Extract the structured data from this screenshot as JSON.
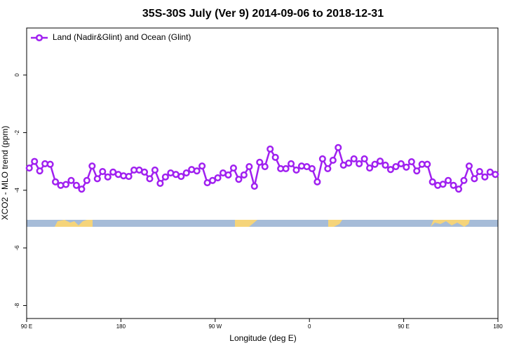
{
  "chart_data": {
    "type": "line",
    "title": "35S-30S July (Ver 9)   2014-09-06 to 2018-12-31",
    "x_label": "Longitude (deg E)",
    "y_label": "XCO2 - MLO trend (ppm)",
    "xlim": [
      90,
      540
    ],
    "ylim": [
      -8.45,
      1.63
    ],
    "xticks": [
      {
        "value": 90,
        "label": "90 E"
      },
      {
        "value": 180,
        "label": "180"
      },
      {
        "value": 270,
        "label": "90 W"
      },
      {
        "value": 360,
        "label": "0"
      },
      {
        "value": 450,
        "label": "90 E"
      },
      {
        "value": 540,
        "label": "180"
      }
    ],
    "yticks": [
      0,
      -2,
      -4,
      -6,
      -8
    ],
    "legend": "top-left",
    "x": [
      92.5,
      97.5,
      102.5,
      107.5,
      112.5,
      117.5,
      122.5,
      127.5,
      132.5,
      137.5,
      142.5,
      147.5,
      152.5,
      157.5,
      162.5,
      167.5,
      172.5,
      177.5,
      182.5,
      187.5,
      192.5,
      197.5,
      202.5,
      207.5,
      212.5,
      217.5,
      222.5,
      227.5,
      232.5,
      237.5,
      242.5,
      247.5,
      252.5,
      257.5,
      262.5,
      267.5,
      272.5,
      277.5,
      282.5,
      287.5,
      292.5,
      297.5,
      302.5,
      307.5,
      312.5,
      317.5,
      322.5,
      327.5,
      332.5,
      337.5,
      342.5,
      347.5,
      352.5,
      357.5,
      362.5,
      367.5,
      372.5,
      377.5,
      382.5,
      387.5,
      392.5,
      397.5,
      402.5,
      407.5,
      412.5,
      417.5,
      422.5,
      427.5,
      432.5,
      437.5,
      442.5,
      447.5,
      452.5,
      457.5,
      462.5,
      467.5,
      472.5,
      477.5,
      482.5,
      487.5,
      492.5,
      497.5,
      502.5,
      507.5,
      512.5,
      517.5,
      522.5,
      527.5,
      532.5,
      537.5
    ],
    "series": [
      {
        "name": "Land (Nadir&Glint) and Ocean (Glint)",
        "color": "#a020f0",
        "values": [
          -3.23,
          -3.0,
          -3.33,
          -3.08,
          -3.1,
          -3.71,
          -3.83,
          -3.8,
          -3.66,
          -3.83,
          -3.96,
          -3.66,
          -3.16,
          -3.6,
          -3.35,
          -3.54,
          -3.37,
          -3.45,
          -3.5,
          -3.52,
          -3.3,
          -3.3,
          -3.37,
          -3.6,
          -3.3,
          -3.76,
          -3.54,
          -3.4,
          -3.45,
          -3.52,
          -3.4,
          -3.28,
          -3.33,
          -3.16,
          -3.74,
          -3.66,
          -3.57,
          -3.4,
          -3.47,
          -3.23,
          -3.62,
          -3.47,
          -3.18,
          -3.86,
          -3.03,
          -3.18,
          -2.57,
          -2.86,
          -3.25,
          -3.25,
          -3.08,
          -3.3,
          -3.16,
          -3.18,
          -3.25,
          -3.71,
          -2.91,
          -3.25,
          -2.96,
          -2.52,
          -3.13,
          -3.06,
          -2.91,
          -3.08,
          -2.91,
          -3.23,
          -3.1,
          -2.99,
          -3.13,
          -3.28,
          -3.18,
          -3.08,
          -3.2,
          -3.01,
          -3.33,
          -3.1,
          -3.1,
          -3.71,
          -3.83,
          -3.79,
          -3.66,
          -3.83,
          -3.96,
          -3.66,
          -3.16,
          -3.6,
          -3.35,
          -3.54,
          -3.37,
          -3.45
        ]
      }
    ]
  }
}
